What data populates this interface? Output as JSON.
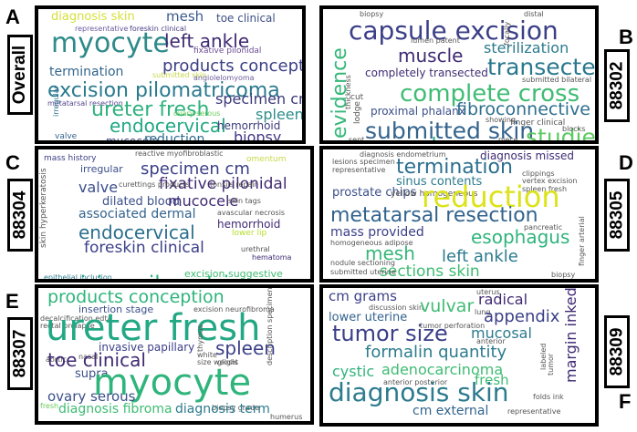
{
  "letters": {
    "A": "A",
    "B": "B",
    "C": "C",
    "D": "D",
    "E": "E",
    "F": "F"
  },
  "labels": {
    "overall": "Overall",
    "cpt_88302": "88302",
    "cpt_88304": "88304",
    "cpt_88305": "88305",
    "cpt_88307": "88307",
    "cpt_88309": "88309"
  },
  "clouds": {
    "overall": [
      {
        "text": "diagnosis skin",
        "color": "#d6e03a"
      },
      {
        "text": "mesh",
        "color": "#3b5a8c"
      },
      {
        "text": "toe clinical",
        "color": "#3e4f87"
      },
      {
        "text": "representative",
        "color": "#6b5a9e"
      },
      {
        "text": "foreskin clinical",
        "color": "#4a3f86"
      },
      {
        "text": "myocyte",
        "color": "#2f8a8a"
      },
      {
        "text": "left ankle",
        "color": "#402a73"
      },
      {
        "text": "fixative pilonidal",
        "color": "#6a4c94"
      },
      {
        "text": "products conception",
        "color": "#3a3f84"
      },
      {
        "text": "termination",
        "color": "#33668d"
      },
      {
        "text": "submitted skin",
        "color": "#c8d84a"
      },
      {
        "text": "excision pilomatricoma",
        "color": "#2a7a8e"
      },
      {
        "text": "metatarsal resection",
        "color": "#58468f"
      },
      {
        "text": "angiolelomyoma",
        "color": "#6d5d9b"
      },
      {
        "text": "ureter fresh",
        "color": "#2eb27c"
      },
      {
        "text": "specimen cm",
        "color": "#3c3978"
      },
      {
        "text": "ovary serous",
        "color": "#6ccb5c"
      },
      {
        "text": "spleen",
        "color": "#2d8e8a"
      },
      {
        "text": "irregular",
        "color": "#2c6f8e"
      },
      {
        "text": "endocervical",
        "color": "#22a884"
      },
      {
        "text": "hemorrhoid",
        "color": "#3b3c7c"
      },
      {
        "text": "valve",
        "color": "#33628d"
      },
      {
        "text": "mucocele",
        "color": "#3f4a89"
      },
      {
        "text": "reduction",
        "color": "#2f6b8e"
      },
      {
        "text": "biopsy",
        "color": "#433784"
      }
    ],
    "cpt_88302": [
      {
        "text": "biopsy",
        "color": "#555"
      },
      {
        "text": "distal",
        "color": "#555"
      },
      {
        "text": "capsule excision",
        "color": "#3b3f87"
      },
      {
        "text": "lumen patent",
        "color": "#555"
      },
      {
        "text": "sterilization",
        "color": "#2c7b8e"
      },
      {
        "text": "muscle",
        "color": "#402a73"
      },
      {
        "text": "transected",
        "color": "#2a788e"
      },
      {
        "text": "completely transected",
        "color": "#3e2d73"
      },
      {
        "text": "submitted bilateral",
        "color": "#555"
      },
      {
        "text": "complete cross",
        "color": "#3fbc73"
      },
      {
        "text": "cut",
        "color": "#555"
      },
      {
        "text": "proximal phalanx",
        "color": "#3b4f8a"
      },
      {
        "text": "fibroconnective",
        "color": "#2d6f8e"
      },
      {
        "text": "finger clinical",
        "color": "#555"
      },
      {
        "text": "submitted skin",
        "color": "#33638d"
      },
      {
        "text": "cm lumen",
        "color": "#22a884"
      },
      {
        "text": "studies",
        "color": "#5ec962"
      },
      {
        "text": "evidence",
        "color": "#35b779"
      },
      {
        "text": "lodge",
        "color": "#555"
      },
      {
        "text": "thickness",
        "color": "#555"
      },
      {
        "text": "focally",
        "color": "#555"
      },
      {
        "text": "showing",
        "color": "#555"
      },
      {
        "text": "sent",
        "color": "#555"
      },
      {
        "text": "piece",
        "color": "#555"
      },
      {
        "text": "blocks",
        "color": "#555"
      }
    ],
    "cpt_88304": [
      {
        "text": "reactive myofibroblastic",
        "color": "#555"
      },
      {
        "text": "mass history",
        "color": "#3b3f87"
      },
      {
        "text": "omentum",
        "color": "#c8d84a"
      },
      {
        "text": "irregular",
        "color": "#3b4f8a"
      },
      {
        "text": "specimen cm",
        "color": "#3b3f87"
      },
      {
        "text": "fixative pilonidal",
        "color": "#402a73"
      },
      {
        "text": "valve",
        "color": "#3b4f8a"
      },
      {
        "text": "curettings products",
        "color": "#555"
      },
      {
        "text": "tonsils repair",
        "color": "#555"
      },
      {
        "text": "dilated blood",
        "color": "#3b4f8a"
      },
      {
        "text": "mucocele",
        "color": "#402a73"
      },
      {
        "text": "skin tags",
        "color": "#555"
      },
      {
        "text": "associated dermal",
        "color": "#33638d"
      },
      {
        "text": "avascular necrosis",
        "color": "#555"
      },
      {
        "text": "endocervical",
        "color": "#2c6f8e"
      },
      {
        "text": "hemorrhoid",
        "color": "#402a73"
      },
      {
        "text": "lower lip",
        "color": "#b5de2b"
      },
      {
        "text": "foreskin clinical",
        "color": "#3b3f87"
      },
      {
        "text": "urethral",
        "color": "#555"
      },
      {
        "text": "hematoma",
        "color": "#402a73"
      },
      {
        "text": "excision pilomatricoma",
        "color": "#2fb47c"
      },
      {
        "text": "skin hyperkeratosis",
        "color": "#555"
      },
      {
        "text": "epithelial inclusion",
        "color": "#2c7b8e"
      },
      {
        "text": "excision suggestive",
        "color": "#3fbc73"
      }
    ],
    "cpt_88305": [
      {
        "text": "diagnosis endometrium",
        "color": "#555"
      },
      {
        "text": "lesions specimen",
        "color": "#555"
      },
      {
        "text": "diagnosis missed",
        "color": "#402a73"
      },
      {
        "text": "termination",
        "color": "#2c6f8e"
      },
      {
        "text": "representative",
        "color": "#555"
      },
      {
        "text": "clippings",
        "color": "#555"
      },
      {
        "text": "sinus contents",
        "color": "#2c7b8e"
      },
      {
        "text": "vertex excision",
        "color": "#555"
      },
      {
        "text": "prostate chips",
        "color": "#3b4f8a"
      },
      {
        "text": "yellow homogeneous",
        "color": "#555"
      },
      {
        "text": "spleen fresh",
        "color": "#555"
      },
      {
        "text": "reduction",
        "color": "#dce319"
      },
      {
        "text": "metatarsal resection",
        "color": "#33638d"
      },
      {
        "text": "esophagus",
        "color": "#2fb47c"
      },
      {
        "text": "mass provided",
        "color": "#3b3f87"
      },
      {
        "text": "pancreatic",
        "color": "#555"
      },
      {
        "text": "homogeneous adipose",
        "color": "#555"
      },
      {
        "text": "mesh",
        "color": "#35b779"
      },
      {
        "text": "left ankle",
        "color": "#2c7b8e"
      },
      {
        "text": "nodule sectioning",
        "color": "#555"
      },
      {
        "text": "sections skin",
        "color": "#3fbc73"
      },
      {
        "text": "submitted uterine",
        "color": "#555"
      },
      {
        "text": "biopsy",
        "color": "#555"
      },
      {
        "text": "finger arterial",
        "color": "#555"
      }
    ],
    "cpt_88307": [
      {
        "text": "products conception",
        "color": "#2fb47c"
      },
      {
        "text": "insertion stage",
        "color": "#3b4f8a"
      },
      {
        "text": "excision neurofibroma",
        "color": "#555"
      },
      {
        "text": "decalcification edta",
        "color": "#555"
      },
      {
        "text": "rectal prolapse",
        "color": "#555"
      },
      {
        "text": "ureter fresh",
        "color": "#22a884"
      },
      {
        "text": "invasive papillary",
        "color": "#3b3f87"
      },
      {
        "text": "thymus",
        "color": "#555"
      },
      {
        "text": "aortic",
        "color": "#555"
      },
      {
        "text": "nasal",
        "color": "#555"
      },
      {
        "text": "spleen",
        "color": "#3b3f87"
      },
      {
        "text": "glosis",
        "color": "#555"
      },
      {
        "text": "toe clinical",
        "color": "#402a73"
      },
      {
        "text": "white",
        "color": "#555"
      },
      {
        "text": "size weight",
        "color": "#555"
      },
      {
        "text": "supra",
        "color": "#3b4f8a"
      },
      {
        "text": "myocyte",
        "color": "#2fb47c"
      },
      {
        "text": "ovary serous",
        "color": "#3b4f8a"
      },
      {
        "text": "description specimen",
        "color": "#555"
      },
      {
        "text": "fresh",
        "color": "#6ccb5c"
      },
      {
        "text": "biopsy grade",
        "color": "#555"
      },
      {
        "text": "diagnosis fibroma",
        "color": "#3fbc73"
      },
      {
        "text": "diagnosis term",
        "color": "#2c7b8e"
      },
      {
        "text": "humerus",
        "color": "#555"
      }
    ],
    "cpt_88309": [
      {
        "text": "cm grams",
        "color": "#3b3f87"
      },
      {
        "text": "uterus",
        "color": "#555"
      },
      {
        "text": "radical",
        "color": "#402a73"
      },
      {
        "text": "discussion",
        "color": "#555"
      },
      {
        "text": "skin",
        "color": "#555"
      },
      {
        "text": "vulvar",
        "color": "#3fbc73"
      },
      {
        "text": "lung",
        "color": "#555"
      },
      {
        "text": "appendix",
        "color": "#3b3f87"
      },
      {
        "text": "lower uterine",
        "color": "#33638d"
      },
      {
        "text": "tumor perforation",
        "color": "#555"
      },
      {
        "text": "tumor size",
        "color": "#3b3f87"
      },
      {
        "text": "mucosal",
        "color": "#2c7b8e"
      },
      {
        "text": "margin inked",
        "color": "#402a73"
      },
      {
        "text": "formalin quantity",
        "color": "#2c7b8e"
      },
      {
        "text": "anterior",
        "color": "#555"
      },
      {
        "text": "cystic",
        "color": "#2fb47c"
      },
      {
        "text": "adenocarcinoma",
        "color": "#3fbc73"
      },
      {
        "text": "anterior posterior",
        "color": "#555"
      },
      {
        "text": "fresh",
        "color": "#3fbc73"
      },
      {
        "text": "folds ink",
        "color": "#555"
      },
      {
        "text": "tumor",
        "color": "#555"
      },
      {
        "text": "diagnosis skin",
        "color": "#2c7b8e"
      },
      {
        "text": "cm external",
        "color": "#33638d"
      },
      {
        "text": "representative",
        "color": "#555"
      },
      {
        "text": "labeled",
        "color": "#555"
      }
    ]
  }
}
